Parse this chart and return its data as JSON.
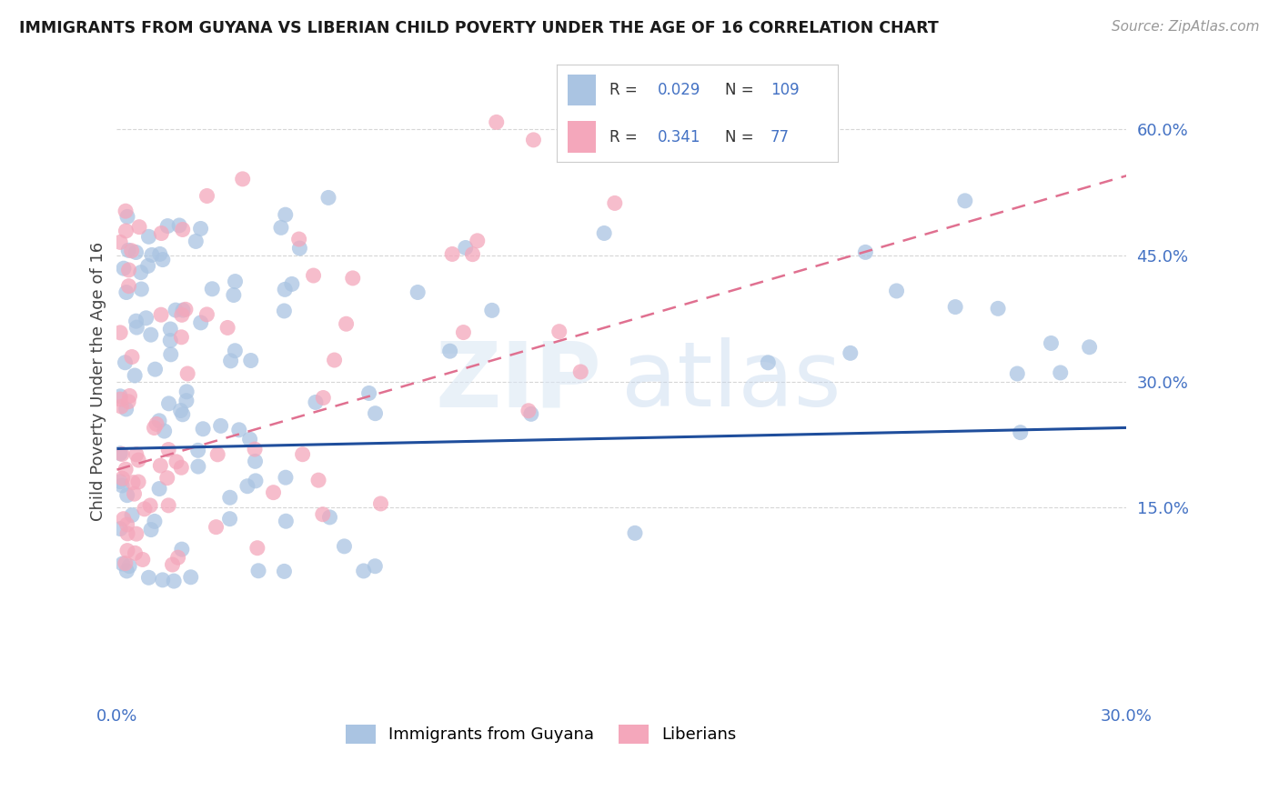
{
  "title": "IMMIGRANTS FROM GUYANA VS LIBERIAN CHILD POVERTY UNDER THE AGE OF 16 CORRELATION CHART",
  "source": "Source: ZipAtlas.com",
  "ylabel": "Child Poverty Under the Age of 16",
  "legend_label1": "Immigrants from Guyana",
  "legend_label2": "Liberians",
  "R1": "0.029",
  "N1": "109",
  "R2": "0.341",
  "N2": "77",
  "color_guyana": "#aac4e2",
  "color_liberia": "#f4a7bb",
  "line_color_guyana": "#1f4e9c",
  "line_color_liberia": "#e07090",
  "watermark_zip": "ZIP",
  "watermark_atlas": "atlas",
  "title_color": "#1a1a1a",
  "axis_label_color": "#4472c4",
  "bg_color": "#ffffff",
  "grid_color": "#cccccc",
  "x_min": 0.0,
  "x_max": 0.3,
  "y_min": -0.08,
  "y_max": 0.68,
  "ytick_vals": [
    0.15,
    0.3,
    0.45,
    0.6
  ],
  "ytick_labels": [
    "15.0%",
    "30.0%",
    "45.0%",
    "60.0%"
  ],
  "guyana_line_y0": 0.22,
  "guyana_line_y1": 0.245,
  "liberia_line_y0": 0.195,
  "liberia_line_y1": 0.545
}
